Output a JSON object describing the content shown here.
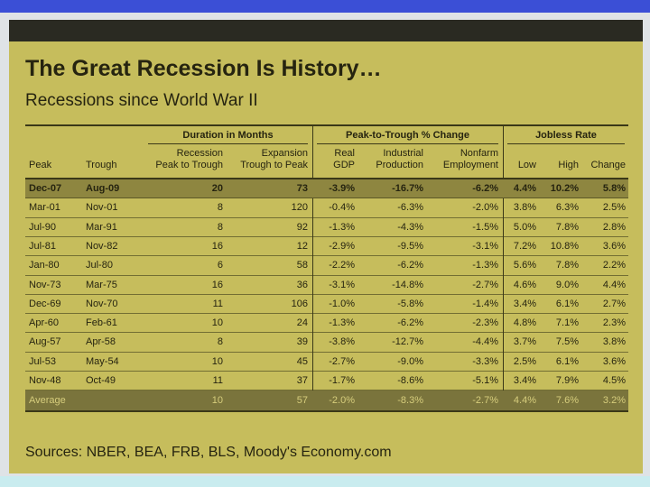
{
  "header": {
    "title": "The Great Recession Is History…",
    "subtitle": "Recessions since World War II"
  },
  "table": {
    "groups": [
      "Duration in Months",
      "Peak-to-Trough % Change",
      "Jobless Rate"
    ],
    "columns": [
      [
        "Peak"
      ],
      [
        "Trough"
      ],
      [
        "Recession",
        "Peak to Trough"
      ],
      [
        "Expansion",
        "Trough to Peak"
      ],
      [
        "Real",
        "GDP"
      ],
      [
        "Industrial",
        "Production"
      ],
      [
        "Nonfarm",
        "Employment"
      ],
      [
        "Low"
      ],
      [
        "High"
      ],
      [
        "Change"
      ]
    ],
    "rows": [
      [
        "Dec-07",
        "Aug-09",
        "20",
        "73",
        "-3.9%",
        "-16.7%",
        "-6.2%",
        "4.4%",
        "10.2%",
        "5.8%"
      ],
      [
        "Mar-01",
        "Nov-01",
        "8",
        "120",
        "-0.4%",
        "-6.3%",
        "-2.0%",
        "3.8%",
        "6.3%",
        "2.5%"
      ],
      [
        "Jul-90",
        "Mar-91",
        "8",
        "92",
        "-1.3%",
        "-4.3%",
        "-1.5%",
        "5.0%",
        "7.8%",
        "2.8%"
      ],
      [
        "Jul-81",
        "Nov-82",
        "16",
        "12",
        "-2.9%",
        "-9.5%",
        "-3.1%",
        "7.2%",
        "10.8%",
        "3.6%"
      ],
      [
        "Jan-80",
        "Jul-80",
        "6",
        "58",
        "-2.2%",
        "-6.2%",
        "-1.3%",
        "5.6%",
        "7.8%",
        "2.2%"
      ],
      [
        "Nov-73",
        "Mar-75",
        "16",
        "36",
        "-3.1%",
        "-14.8%",
        "-2.7%",
        "4.6%",
        "9.0%",
        "4.4%"
      ],
      [
        "Dec-69",
        "Nov-70",
        "11",
        "106",
        "-1.0%",
        "-5.8%",
        "-1.4%",
        "3.4%",
        "6.1%",
        "2.7%"
      ],
      [
        "Apr-60",
        "Feb-61",
        "10",
        "24",
        "-1.3%",
        "-6.2%",
        "-2.3%",
        "4.8%",
        "7.1%",
        "2.3%"
      ],
      [
        "Aug-57",
        "Apr-58",
        "8",
        "39",
        "-3.8%",
        "-12.7%",
        "-4.4%",
        "3.7%",
        "7.5%",
        "3.8%"
      ],
      [
        "Jul-53",
        "May-54",
        "10",
        "45",
        "-2.7%",
        "-9.0%",
        "-3.3%",
        "2.5%",
        "6.1%",
        "3.6%"
      ],
      [
        "Nov-48",
        "Oct-49",
        "11",
        "37",
        "-1.7%",
        "-8.6%",
        "-5.1%",
        "3.4%",
        "7.9%",
        "4.5%"
      ]
    ],
    "average": {
      "label": "Average",
      "cells": [
        "10",
        "57",
        "-2.0%",
        "-8.3%",
        "-2.7%",
        "4.4%",
        "7.6%",
        "3.2%"
      ]
    }
  },
  "footer": {
    "sources": "Sources: NBER, BEA, FRB, BLS, Moody's Economy.com"
  }
}
